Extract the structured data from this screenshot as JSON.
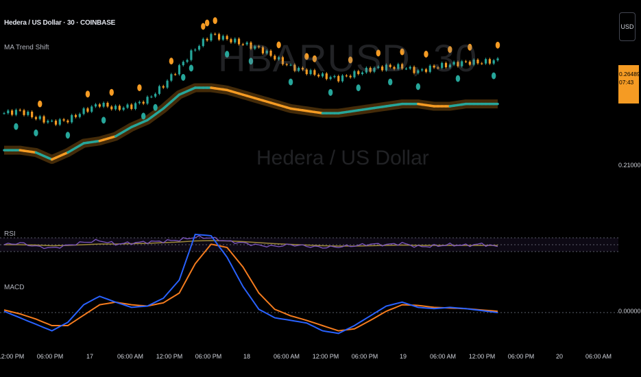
{
  "header": {
    "title": "Hedera / US Dollar · 30 · COINBASE",
    "indicator": "MA Trend Shift"
  },
  "watermark": {
    "symbol": "HBARUSD, 30",
    "description": "Hedera / US Dollar"
  },
  "currency_button": "USD",
  "price_tag": {
    "price": "0.26489",
    "countdown": "07:43"
  },
  "price_axis": {
    "mid_label": "0.21000",
    "macd_zero_label": "0.00000"
  },
  "panes": {
    "rsi_label": "RSI",
    "macd_label": "MACD"
  },
  "time_axis": [
    "12:00 PM",
    "06:00 PM",
    "17",
    "06:00 AM",
    "12:00 PM",
    "06:00 PM",
    "18",
    "06:00 AM",
    "12:00 PM",
    "06:00 PM",
    "19",
    "06:00 AM",
    "12:00 PM",
    "06:00 PM",
    "20",
    "06:00 AM"
  ],
  "colors": {
    "bull": "#26a69a",
    "bear": "#f59b23",
    "rsi": "#7e57c2",
    "rsi_ma": "#9e8a3a",
    "macd": "#2962ff",
    "signal": "#f57c1e",
    "background": "#000000"
  },
  "chart_data": [
    {
      "type": "candlestick",
      "title": "Hedera / US Dollar · 30 · COINBASE",
      "ylim": [
        0.205,
        0.285
      ],
      "x": [
        0,
        4,
        8,
        12,
        16,
        20,
        24,
        28,
        32,
        36,
        40,
        44,
        48,
        52,
        56,
        60,
        64,
        68,
        72,
        76,
        80,
        84,
        88,
        92,
        96,
        100,
        104,
        108,
        112,
        116,
        120,
        124
      ],
      "close": [
        0.242,
        0.243,
        0.24,
        0.238,
        0.239,
        0.243,
        0.246,
        0.244,
        0.245,
        0.248,
        0.254,
        0.262,
        0.27,
        0.276,
        0.274,
        0.272,
        0.27,
        0.266,
        0.262,
        0.26,
        0.258,
        0.257,
        0.259,
        0.261,
        0.262,
        0.262,
        0.26,
        0.262,
        0.263,
        0.264,
        0.264,
        0.2649
      ],
      "trend_ma": {
        "values": [
          0.226,
          0.226,
          0.225,
          0.222,
          0.225,
          0.229,
          0.23,
          0.232,
          0.236,
          0.239,
          0.244,
          0.25,
          0.253,
          0.253,
          0.252,
          0.25,
          0.248,
          0.246,
          0.244,
          0.243,
          0.242,
          0.242,
          0.243,
          0.244,
          0.245,
          0.246,
          0.246,
          0.245,
          0.245,
          0.246,
          0.246,
          0.246
        ],
        "trend": [
          "bull",
          "bear",
          "bull",
          "bear",
          "bull",
          "bull",
          "bear",
          "bull",
          "bull",
          "bull",
          "bull",
          "bull",
          "bull",
          "bear",
          "bear",
          "bear",
          "bear",
          "bear",
          "bear",
          "bear",
          "bull",
          "bull",
          "bull",
          "bull",
          "bull",
          "bull",
          "bear",
          "bear",
          "bull",
          "bull",
          "bull",
          "bear"
        ]
      },
      "signals": [
        {
          "x": 3,
          "type": "bull"
        },
        {
          "x": 8,
          "type": "bull"
        },
        {
          "x": 9,
          "type": "bear"
        },
        {
          "x": 16,
          "type": "bull"
        },
        {
          "x": 21,
          "type": "bear"
        },
        {
          "x": 25,
          "type": "bull"
        },
        {
          "x": 27,
          "type": "bear"
        },
        {
          "x": 34,
          "type": "bear"
        },
        {
          "x": 35,
          "type": "bull"
        },
        {
          "x": 38,
          "type": "bull"
        },
        {
          "x": 42,
          "type": "bear"
        },
        {
          "x": 45,
          "type": "bull"
        },
        {
          "x": 47,
          "type": "bull"
        },
        {
          "x": 50,
          "type": "bear"
        },
        {
          "x": 51,
          "type": "bear"
        },
        {
          "x": 53,
          "type": "bear"
        },
        {
          "x": 56,
          "type": "bull"
        },
        {
          "x": 62,
          "type": "bull"
        },
        {
          "x": 69,
          "type": "bear"
        },
        {
          "x": 72,
          "type": "bull"
        },
        {
          "x": 76,
          "type": "bear"
        },
        {
          "x": 78,
          "type": "bear"
        },
        {
          "x": 82,
          "type": "bull"
        },
        {
          "x": 87,
          "type": "bear"
        },
        {
          "x": 89,
          "type": "bull"
        },
        {
          "x": 94,
          "type": "bear"
        },
        {
          "x": 97,
          "type": "bull"
        },
        {
          "x": 100,
          "type": "bear"
        },
        {
          "x": 104,
          "type": "bull"
        },
        {
          "x": 106,
          "type": "bear"
        },
        {
          "x": 112,
          "type": "bear"
        },
        {
          "x": 114,
          "type": "bull"
        },
        {
          "x": 117,
          "type": "bear"
        },
        {
          "x": 123,
          "type": "bull"
        },
        {
          "x": 124,
          "type": "bear"
        }
      ]
    },
    {
      "type": "line",
      "title": "RSI",
      "ylim": [
        0,
        100
      ],
      "levels": [
        70,
        50,
        30
      ],
      "x": [
        0,
        4,
        8,
        12,
        16,
        20,
        24,
        28,
        32,
        36,
        40,
        44,
        48,
        52,
        56,
        60,
        64,
        68,
        72,
        76,
        80,
        84,
        88,
        92,
        96,
        100,
        104,
        108,
        112,
        116,
        120,
        124
      ],
      "series": [
        {
          "values": [
            50,
            55,
            45,
            40,
            48,
            57,
            62,
            52,
            55,
            58,
            60,
            64,
            72,
            70,
            60,
            55,
            48,
            45,
            50,
            46,
            42,
            44,
            47,
            52,
            50,
            54,
            44,
            46,
            50,
            48,
            52,
            44
          ]
        },
        {
          "values": [
            50,
            50,
            49,
            47,
            48,
            50,
            52,
            52,
            53,
            54,
            56,
            58,
            61,
            62,
            61,
            59,
            56,
            53,
            51,
            49,
            47,
            46,
            46,
            47,
            48,
            49,
            48,
            48,
            48,
            48,
            48,
            48
          ]
        }
      ]
    },
    {
      "type": "line",
      "title": "MACD",
      "x": [
        0,
        4,
        8,
        12,
        16,
        20,
        24,
        28,
        32,
        36,
        40,
        44,
        48,
        52,
        56,
        60,
        64,
        68,
        72,
        76,
        80,
        84,
        88,
        92,
        96,
        100,
        104,
        108,
        112,
        116,
        120,
        124
      ],
      "series": [
        {
          "values": [
            0.0002,
            -0.0008,
            -0.0018,
            -0.0028,
            -0.0015,
            0.0012,
            0.0025,
            0.0016,
            0.0008,
            0.001,
            0.0022,
            0.005,
            0.012,
            0.0118,
            0.0085,
            0.004,
            0.0005,
            -0.0008,
            -0.0012,
            -0.0016,
            -0.0028,
            -0.0032,
            -0.002,
            -0.0005,
            0.001,
            0.0016,
            0.0008,
            0.0006,
            0.0008,
            0.0006,
            0.0003,
            0.0
          ]
        },
        {
          "values": [
            0.0004,
            -0.0002,
            -0.001,
            -0.002,
            -0.002,
            -0.0004,
            0.0012,
            0.0016,
            0.0012,
            0.001,
            0.0015,
            0.003,
            0.0075,
            0.0105,
            0.01,
            0.007,
            0.003,
            0.0005,
            -0.0005,
            -0.0012,
            -0.002,
            -0.0028,
            -0.0025,
            -0.0012,
            0.0002,
            0.0012,
            0.0011,
            0.0008,
            0.0007,
            0.0006,
            0.0004,
            0.0002
          ]
        }
      ]
    }
  ]
}
